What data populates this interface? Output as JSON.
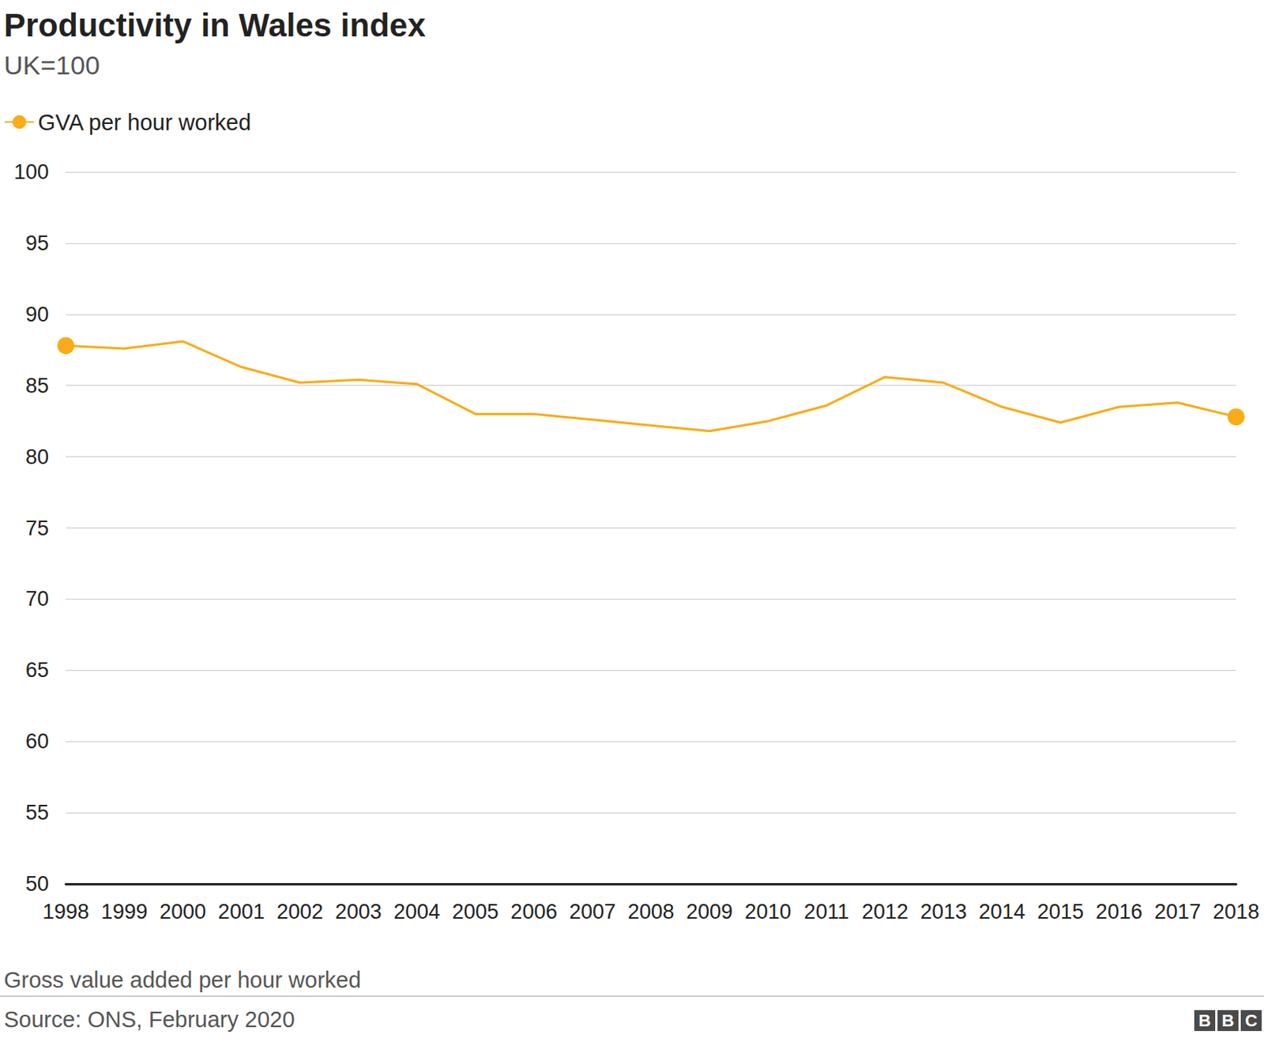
{
  "chart_data": {
    "type": "line",
    "title": "Productivity in Wales index",
    "subtitle": "UK=100",
    "note": "Gross value added per hour worked",
    "source": "Source: ONS, February 2020",
    "logo": "BBC",
    "categories": [
      "1998",
      "1999",
      "2000",
      "2001",
      "2002",
      "2003",
      "2004",
      "2005",
      "2006",
      "2007",
      "2008",
      "2009",
      "2010",
      "2011",
      "2012",
      "2013",
      "2014",
      "2015",
      "2016",
      "2017",
      "2018"
    ],
    "series": [
      {
        "name": "GVA per hour worked",
        "color": "#faab18",
        "marker": "ends",
        "values": [
          87.8,
          87.6,
          88.1,
          86.3,
          85.2,
          85.4,
          85.1,
          83.0,
          83.0,
          82.6,
          82.2,
          81.8,
          82.5,
          83.6,
          85.6,
          85.2,
          83.5,
          82.4,
          83.5,
          83.8,
          82.8
        ]
      }
    ],
    "ylim": [
      50,
      100
    ],
    "yticks": [
      50,
      55,
      60,
      65,
      70,
      75,
      80,
      85,
      90,
      95,
      100
    ],
    "grid": true,
    "legend": "top-left"
  }
}
